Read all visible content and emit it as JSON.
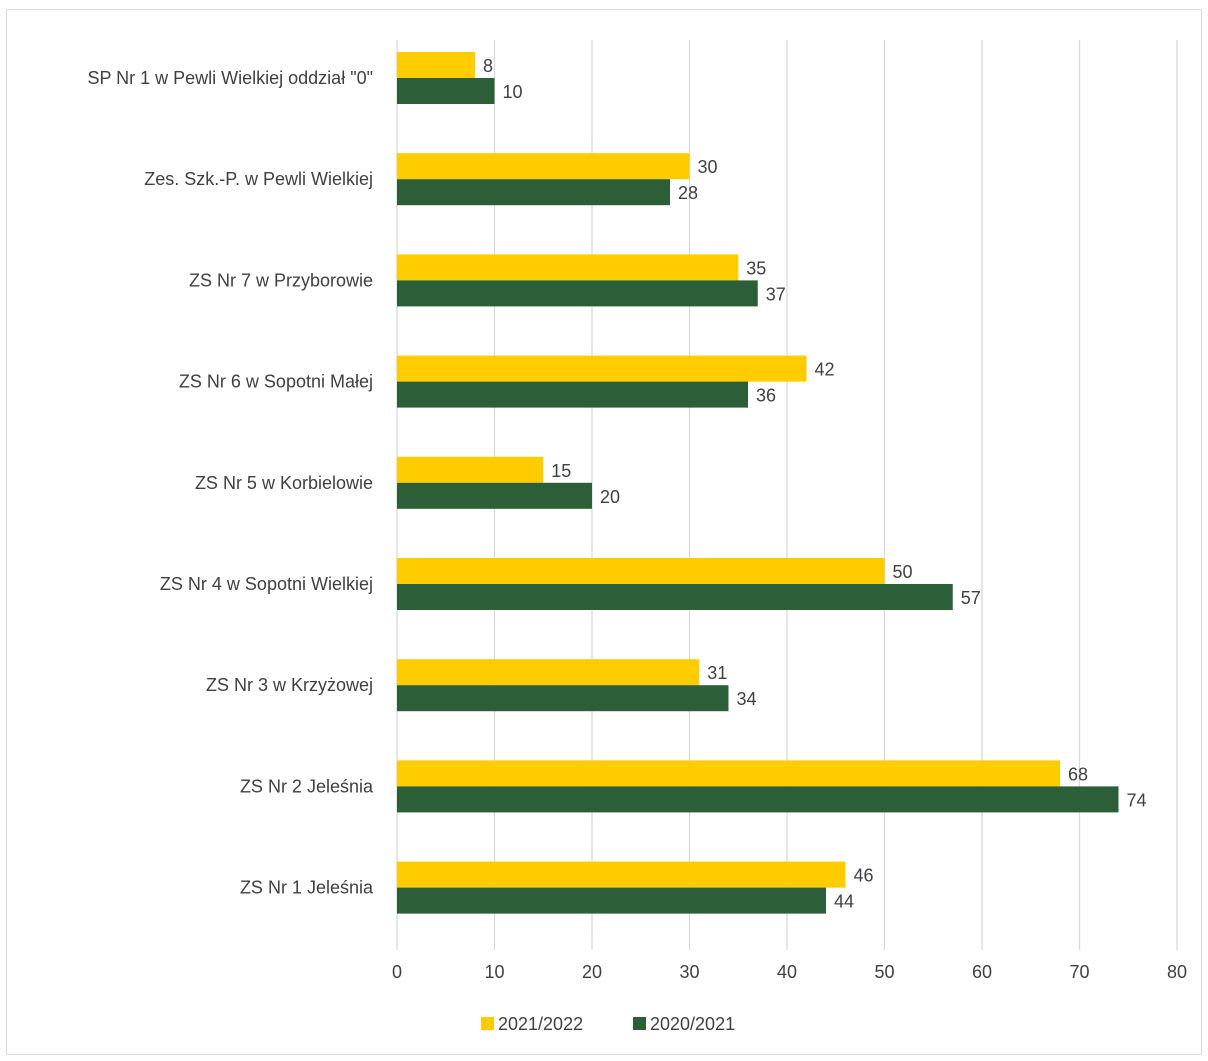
{
  "chart_data": {
    "type": "bar",
    "orientation": "horizontal",
    "categories": [
      "SP Nr 1 w Pewli Wielkiej oddział \"0\"",
      "Zes. Szk.-P. w Pewli Wielkiej",
      "ZS Nr 7 w Przyborowie",
      "ZS Nr 6 w Sopotni Małej",
      "ZS Nr 5 w Korbielowie",
      "ZS Nr 4 w Sopotni Wielkiej",
      "ZS Nr 3 w Krzyżowej",
      "ZS Nr 2 Jeleśnia",
      "ZS Nr 1 Jeleśnia"
    ],
    "series": [
      {
        "name": "2021/2022",
        "color": "#FFCC00",
        "values": [
          8,
          30,
          35,
          42,
          15,
          50,
          31,
          68,
          46
        ]
      },
      {
        "name": "2020/2021",
        "color": "#2C5E37",
        "values": [
          10,
          28,
          37,
          36,
          20,
          57,
          34,
          74,
          44
        ]
      }
    ],
    "xlim": [
      0,
      80
    ],
    "xticks": [
      0,
      10,
      20,
      30,
      40,
      50,
      60,
      70,
      80
    ],
    "grid": "vertical",
    "legend_position": "bottom",
    "data_labels": true,
    "title": "",
    "xlabel": "",
    "ylabel": ""
  }
}
